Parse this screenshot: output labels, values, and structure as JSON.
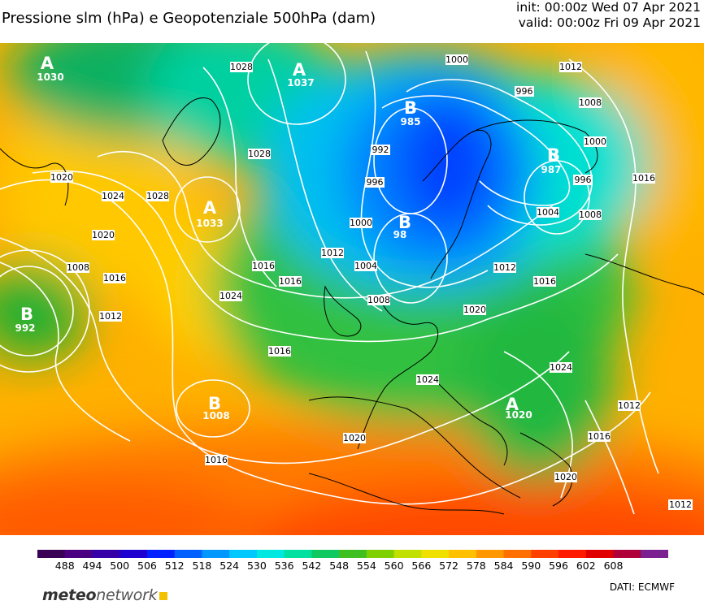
{
  "header": {
    "title": "Pressione slm (hPa) e Geopotenziale 500hPa (dam)",
    "init": "init: 00:00z Wed 07 Apr 2021",
    "valid": "valid: 00:00z Fri 09 Apr 2021"
  },
  "colorbar": {
    "ticks": [
      "488",
      "494",
      "500",
      "506",
      "512",
      "518",
      "524",
      "530",
      "536",
      "542",
      "548",
      "554",
      "560",
      "566",
      "572",
      "578",
      "584",
      "590",
      "596",
      "602",
      "608"
    ],
    "colors": [
      "#3a0055",
      "#4a0080",
      "#3500a8",
      "#1d00d0",
      "#0020ff",
      "#0060ff",
      "#0098ff",
      "#00c8ff",
      "#00e8e0",
      "#00e0a0",
      "#10c860",
      "#40c020",
      "#80d000",
      "#c0e000",
      "#f0e000",
      "#ffc000",
      "#ff9800",
      "#ff7000",
      "#ff4000",
      "#ff1a00",
      "#e00000",
      "#b0003a",
      "#7a2090"
    ]
  },
  "centers": [
    {
      "letter": "A",
      "value": "1030"
    },
    {
      "letter": "A",
      "value": "1037"
    },
    {
      "letter": "B",
      "value": "985"
    },
    {
      "letter": "B",
      "value": "987"
    },
    {
      "letter": "A",
      "value": "1033"
    },
    {
      "letter": "B",
      "value": "98"
    },
    {
      "letter": "B",
      "value": "992"
    },
    {
      "letter": "B",
      "value": "1008"
    },
    {
      "letter": "A",
      "value": "1020"
    }
  ],
  "isobar_labels": [
    "1028",
    "1000",
    "1012",
    "996",
    "1008",
    "1000",
    "992",
    "1028",
    "996",
    "1016",
    "1020",
    "1024",
    "1028",
    "996",
    "1004",
    "1008",
    "1000",
    "1012",
    "1020",
    "1004",
    "1016",
    "1012",
    "1016",
    "1008",
    "1008",
    "1016",
    "1012",
    "1016",
    "1024",
    "1020",
    "1016",
    "1024",
    "1024",
    "1012",
    "1020",
    "1016",
    "1016",
    "1020",
    "1012"
  ],
  "footer": {
    "brand_a": "meteo",
    "brand_b": "network",
    "credit": "DATI:  ECMWF"
  }
}
